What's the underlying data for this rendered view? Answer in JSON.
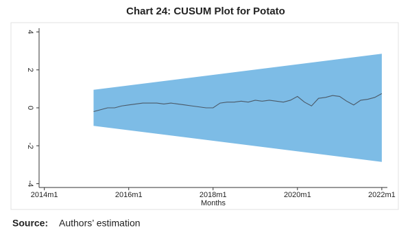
{
  "chart_data": {
    "type": "line",
    "title": "Chart 24: CUSUM Plot for Potato",
    "x_label": "Months",
    "x": [
      662,
      664,
      666,
      668,
      670,
      672,
      674,
      676,
      678,
      680,
      682,
      684,
      686,
      688,
      690,
      692,
      694,
      696,
      698,
      700,
      702,
      704,
      706,
      708,
      710,
      712,
      714,
      716,
      718,
      720,
      722,
      724,
      726,
      728,
      730,
      732,
      734,
      736,
      738,
      740,
      742,
      744
    ],
    "series": [
      {
        "color": "#4a5866",
        "values": [
          -0.2,
          -0.1,
          0.0,
          0.0,
          0.1,
          0.15,
          0.2,
          0.25,
          0.25,
          0.25,
          0.2,
          0.25,
          0.2,
          0.15,
          0.1,
          0.05,
          0.0,
          0.0,
          0.25,
          0.3,
          0.3,
          0.35,
          0.3,
          0.4,
          0.35,
          0.4,
          0.35,
          0.3,
          0.4,
          0.6,
          0.3,
          0.1,
          0.5,
          0.55,
          0.65,
          0.6,
          0.35,
          0.15,
          0.4,
          0.45,
          0.55,
          0.75
        ]
      }
    ],
    "band": {
      "x": [
        662,
        744
      ],
      "upper": [
        0.95,
        2.85
      ],
      "lower": [
        -0.95,
        -2.85
      ],
      "color": "#7dbce6"
    },
    "xlim": [
      646.5,
      745
    ],
    "ylim": [
      -4.2,
      4.2
    ],
    "xticks": [
      {
        "value": 648,
        "label": "2014m1"
      },
      {
        "value": 672,
        "label": "2016m1"
      },
      {
        "value": 696,
        "label": "2018m1"
      },
      {
        "value": 720,
        "label": "2020m1"
      },
      {
        "value": 744,
        "label": "2022m1"
      }
    ],
    "yticks": [
      -4,
      -2,
      0,
      2,
      4
    ]
  },
  "footer": {
    "label": "Source:",
    "text": "Authors’ estimation"
  }
}
